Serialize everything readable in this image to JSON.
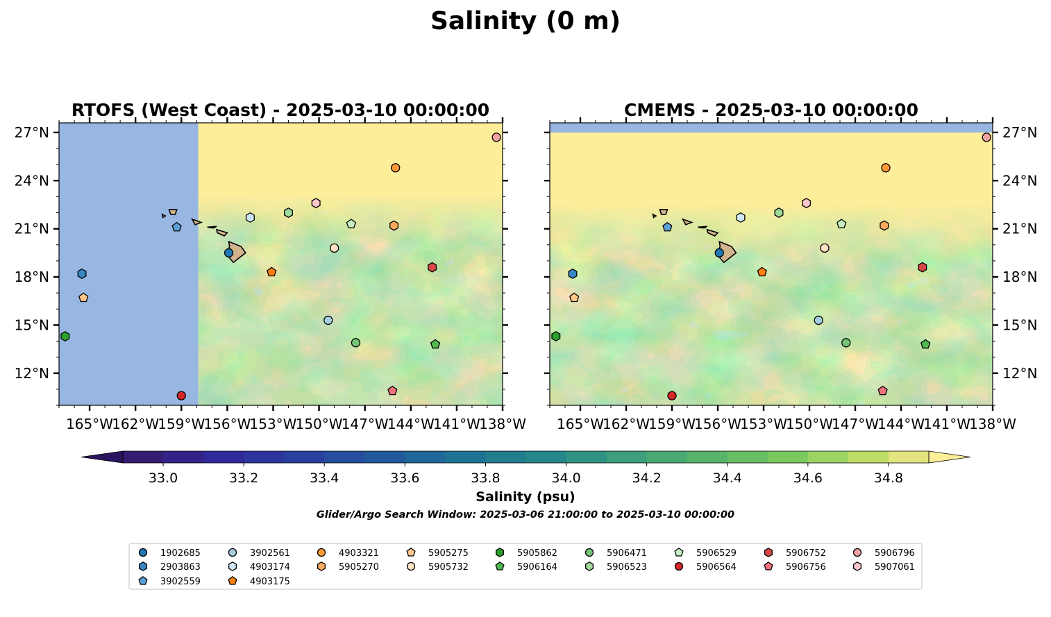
{
  "chart_data": {
    "type": "map-contour",
    "title": "Salinity (0 m)",
    "colorbar": {
      "label": "Salinity (psu)",
      "ticks": [
        33.0,
        33.2,
        33.4,
        33.6,
        33.8,
        34.0,
        34.2,
        34.4,
        34.6,
        34.8
      ],
      "tick_labels": [
        "33.0",
        "33.2",
        "33.4",
        "33.6",
        "33.8",
        "34.0",
        "34.2",
        "34.4",
        "34.6",
        "34.8"
      ],
      "range": [
        32.9,
        34.9
      ],
      "step": 0.1,
      "extend": "both"
    },
    "note": "Glider/Argo Search Window: 2025-03-06 21:00:00 to 2025-03-10 00:00:00",
    "extent": {
      "lon": [
        -167,
        -138
      ],
      "lat": [
        10,
        27.6
      ]
    },
    "lon_ticks": [
      -165,
      -162,
      -159,
      -156,
      -153,
      -150,
      -147,
      -144,
      -141,
      -138
    ],
    "lon_tick_labels": [
      "165°W",
      "162°W",
      "159°W",
      "156°W",
      "153°W",
      "150°W",
      "147°W",
      "144°W",
      "141°W",
      "138°W"
    ],
    "lat_ticks": [
      12,
      15,
      18,
      21,
      24,
      27
    ],
    "lat_tick_labels": [
      "12°N",
      "15°N",
      "18°N",
      "21°N",
      "24°N",
      "27°N"
    ],
    "panels": [
      {
        "title": "RTOFS (West Coast) - 2025-03-10 00:00:00",
        "model": "rtofs",
        "nodata_west_of_lon": -157.9,
        "ylabels": "left"
      },
      {
        "title": "CMEMS - 2025-03-10 00:00:00",
        "model": "cmems",
        "nodata_north_of_lat": 27.0,
        "ylabels": "right"
      }
    ],
    "floats": [
      {
        "id": "1902685",
        "lon": -155.9,
        "lat": 19.5,
        "marker": "circle",
        "color": "#1f77b4"
      },
      {
        "id": "2903863",
        "lon": -165.5,
        "lat": 18.2,
        "marker": "hexagon",
        "color": "#3b87c4"
      },
      {
        "id": "3902559",
        "lon": -159.3,
        "lat": 21.1,
        "marker": "pentagon",
        "color": "#5a9fd6"
      },
      {
        "id": "3902561",
        "lon": -149.4,
        "lat": 15.3,
        "marker": "circle",
        "color": "#a6cee3"
      },
      {
        "id": "4903174",
        "lon": -154.5,
        "lat": 21.7,
        "marker": "hexagon",
        "color": "#d0e8f6"
      },
      {
        "id": "4903175",
        "lon": -153.1,
        "lat": 18.3,
        "marker": "pentagon",
        "color": "#ff7f0e"
      },
      {
        "id": "4903321",
        "lon": -145.0,
        "lat": 24.8,
        "marker": "circle",
        "color": "#ff9933"
      },
      {
        "id": "5905270",
        "lon": -145.1,
        "lat": 21.2,
        "marker": "hexagon",
        "color": "#ffaa5e"
      },
      {
        "id": "5905275",
        "lon": -165.4,
        "lat": 16.7,
        "marker": "pentagon",
        "color": "#ffc68a"
      },
      {
        "id": "5905732",
        "lon": -149.0,
        "lat": 19.8,
        "marker": "circle",
        "color": "#ffe3c4"
      },
      {
        "id": "5905862",
        "lon": -166.6,
        "lat": 14.3,
        "marker": "hexagon",
        "color": "#2ca02c"
      },
      {
        "id": "5906164",
        "lon": -142.4,
        "lat": 13.8,
        "marker": "pentagon",
        "color": "#50b850"
      },
      {
        "id": "5906471",
        "lon": -147.6,
        "lat": 13.9,
        "marker": "circle",
        "color": "#74c476"
      },
      {
        "id": "5906523",
        "lon": -152.0,
        "lat": 22.0,
        "marker": "hexagon",
        "color": "#a1d99b"
      },
      {
        "id": "5906529",
        "lon": -147.9,
        "lat": 21.3,
        "marker": "pentagon",
        "color": "#c7f0c2"
      },
      {
        "id": "5906564",
        "lon": -159.0,
        "lat": 10.6,
        "marker": "circle",
        "color": "#d62728"
      },
      {
        "id": "5906752",
        "lon": -142.6,
        "lat": 18.6,
        "marker": "hexagon",
        "color": "#d94848"
      },
      {
        "id": "5906756",
        "lon": -145.2,
        "lat": 10.9,
        "marker": "pentagon",
        "color": "#f0727a"
      },
      {
        "id": "5906796",
        "lon": -138.4,
        "lat": 26.7,
        "marker": "circle",
        "color": "#f1a0a0"
      },
      {
        "id": "5907061",
        "lon": -150.2,
        "lat": 22.6,
        "marker": "hexagon",
        "color": "#fcc8cc"
      }
    ]
  }
}
